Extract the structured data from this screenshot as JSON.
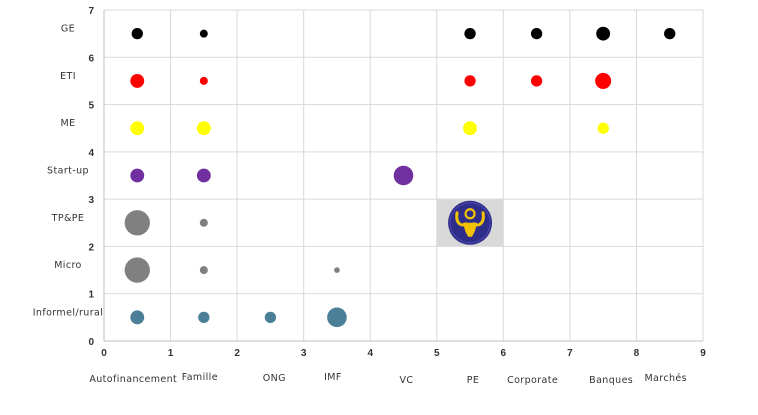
{
  "chart_data": {
    "type": "scatter",
    "title": "",
    "xlabel": "",
    "ylabel": "",
    "xlim": [
      0,
      9
    ],
    "ylim": [
      0,
      7
    ],
    "x_ticks": [
      "0",
      "1",
      "2",
      "3",
      "4",
      "5",
      "6",
      "7",
      "8",
      "9"
    ],
    "y_ticks": [
      "0",
      "1",
      "2",
      "3",
      "4",
      "5",
      "6",
      "7"
    ],
    "grid": true,
    "x_categories": [
      {
        "label": "Autofinancement",
        "x": 0.5
      },
      {
        "label": "Famille",
        "x": 1.5
      },
      {
        "label": "ONG",
        "x": 2.5
      },
      {
        "label": "IMF",
        "x": 3.5
      },
      {
        "label": "VC",
        "x": 4.5
      },
      {
        "label": "PE",
        "x": 5.5
      },
      {
        "label": "Corporate",
        "x": 6.5
      },
      {
        "label": "Banques",
        "x": 7.5
      },
      {
        "label": "Marchés",
        "x": 8.5
      }
    ],
    "y_categories": [
      {
        "label": "Informel/rural",
        "y": 0.5
      },
      {
        "label": "Micro",
        "y": 1.5
      },
      {
        "label": "TP&PE",
        "y": 2.5
      },
      {
        "label": "Start-up",
        "y": 3.5
      },
      {
        "label": "ME",
        "y": 4.5
      },
      {
        "label": "ETI",
        "y": 5.5
      },
      {
        "label": "GE",
        "y": 6.5
      }
    ],
    "highlight": {
      "x": [
        5,
        6
      ],
      "y": [
        2,
        3
      ],
      "label": "logo",
      "color": "#d9d9d9"
    },
    "series": [
      {
        "name": "GE",
        "color": "#000000",
        "points": [
          {
            "x": 0.5,
            "y": 6.5,
            "size": 2
          },
          {
            "x": 1.5,
            "y": 6.5,
            "size": 1
          },
          {
            "x": 5.5,
            "y": 6.5,
            "size": 2
          },
          {
            "x": 6.5,
            "y": 6.5,
            "size": 2
          },
          {
            "x": 7.5,
            "y": 6.5,
            "size": 3
          },
          {
            "x": 8.5,
            "y": 6.5,
            "size": 2
          }
        ]
      },
      {
        "name": "ETI",
        "color": "#ff0000",
        "points": [
          {
            "x": 0.5,
            "y": 5.5,
            "size": 3
          },
          {
            "x": 1.5,
            "y": 5.5,
            "size": 1
          },
          {
            "x": 5.5,
            "y": 5.5,
            "size": 2
          },
          {
            "x": 6.5,
            "y": 5.5,
            "size": 2
          },
          {
            "x": 7.5,
            "y": 5.5,
            "size": 4
          }
        ]
      },
      {
        "name": "ME",
        "color": "#ffff00",
        "points": [
          {
            "x": 0.5,
            "y": 4.5,
            "size": 3
          },
          {
            "x": 1.5,
            "y": 4.5,
            "size": 3
          },
          {
            "x": 5.5,
            "y": 4.5,
            "size": 3
          },
          {
            "x": 7.5,
            "y": 4.5,
            "size": 2
          }
        ]
      },
      {
        "name": "Start-up",
        "color": "#7030a0",
        "points": [
          {
            "x": 0.5,
            "y": 3.5,
            "size": 3
          },
          {
            "x": 1.5,
            "y": 3.5,
            "size": 3
          },
          {
            "x": 4.5,
            "y": 3.5,
            "size": 6
          }
        ]
      },
      {
        "name": "TP&PE",
        "color": "#808080",
        "points": [
          {
            "x": 0.5,
            "y": 2.5,
            "size": 10
          },
          {
            "x": 1.5,
            "y": 2.5,
            "size": 1
          }
        ]
      },
      {
        "name": "Micro",
        "color": "#808080",
        "points": [
          {
            "x": 0.5,
            "y": 1.5,
            "size": 10
          },
          {
            "x": 1.5,
            "y": 1.5,
            "size": 1
          },
          {
            "x": 3.5,
            "y": 1.5,
            "size": 0.5
          }
        ]
      },
      {
        "name": "Informel/rural",
        "color": "#4a7f97",
        "points": [
          {
            "x": 0.5,
            "y": 0.5,
            "size": 3
          },
          {
            "x": 1.5,
            "y": 0.5,
            "size": 2
          },
          {
            "x": 2.5,
            "y": 0.5,
            "size": 2
          },
          {
            "x": 3.5,
            "y": 0.5,
            "size": 6
          }
        ]
      }
    ]
  }
}
